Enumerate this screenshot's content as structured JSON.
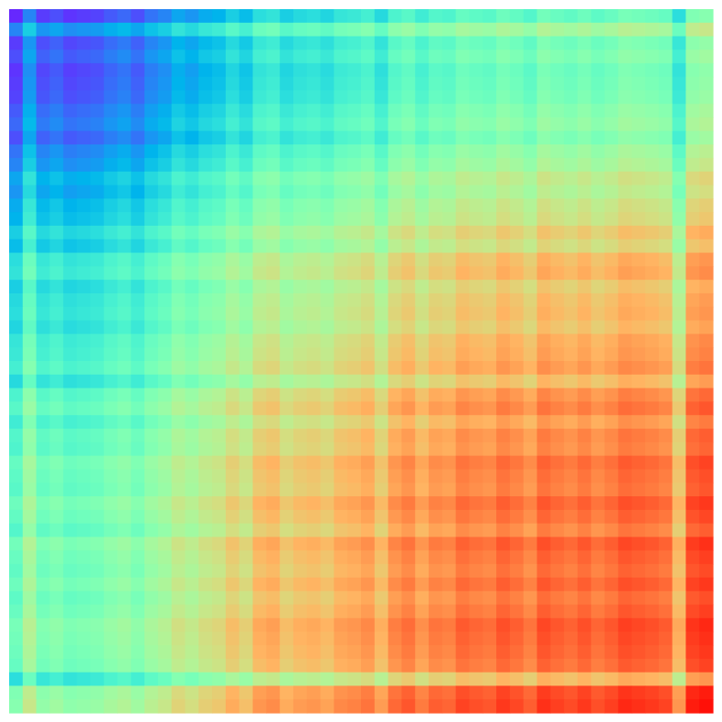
{
  "chart_data": {
    "type": "heatmap",
    "title": "",
    "xlabel": "",
    "ylabel": "",
    "colormap": "rainbow",
    "grid": false,
    "colorbar": false,
    "axes_visible": false,
    "n_rows": 52,
    "n_cols": 52,
    "value_range": [
      0,
      1
    ],
    "row_values": [
      0.05,
      0.3,
      0.1,
      0.15,
      0.08,
      0.1,
      0.12,
      0.18,
      0.22,
      0.15,
      0.25,
      0.3,
      0.4,
      0.35,
      0.42,
      0.45,
      0.55,
      0.48,
      0.62,
      0.65,
      0.55,
      0.6,
      0.62,
      0.58,
      0.66,
      0.68,
      0.72,
      0.6,
      0.75,
      0.8,
      0.7,
      0.78,
      0.76,
      0.85,
      0.82,
      0.8,
      0.88,
      0.84,
      0.78,
      0.9,
      0.86,
      0.83,
      0.88,
      0.82,
      0.86,
      0.92,
      0.9,
      0.88,
      0.85,
      0.62,
      0.95,
      0.98
    ],
    "col_values": [
      0.05,
      0.3,
      0.1,
      0.15,
      0.08,
      0.1,
      0.12,
      0.18,
      0.22,
      0.15,
      0.25,
      0.3,
      0.4,
      0.35,
      0.42,
      0.45,
      0.55,
      0.48,
      0.62,
      0.65,
      0.55,
      0.6,
      0.62,
      0.58,
      0.66,
      0.68,
      0.72,
      0.6,
      0.75,
      0.8,
      0.7,
      0.78,
      0.76,
      0.85,
      0.82,
      0.8,
      0.88,
      0.84,
      0.78,
      0.9,
      0.86,
      0.83,
      0.88,
      0.82,
      0.86,
      0.92,
      0.9,
      0.88,
      0.85,
      0.62,
      0.95,
      0.98
    ]
  }
}
